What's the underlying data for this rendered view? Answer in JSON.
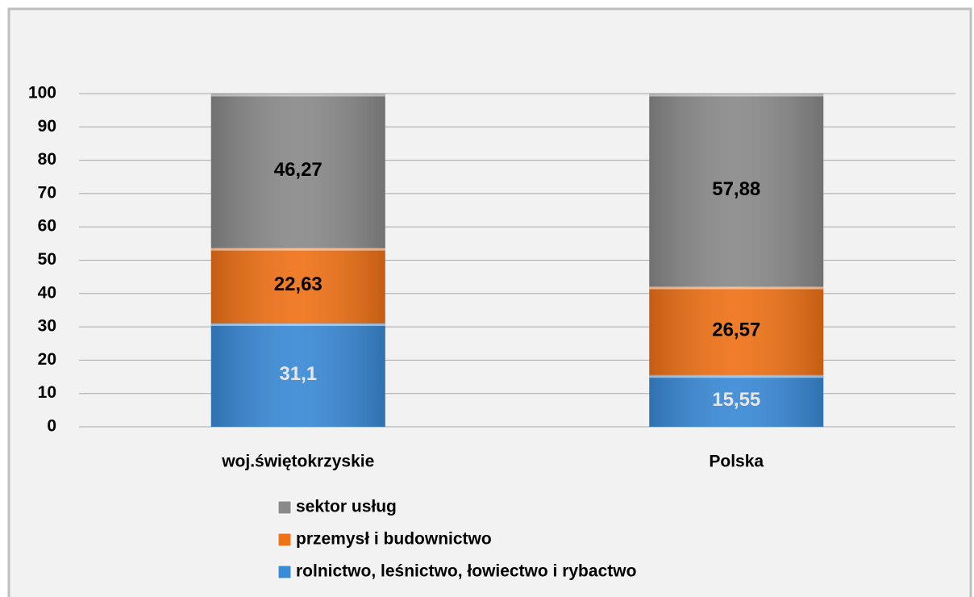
{
  "chart_data": {
    "type": "stacked_bar",
    "categories": [
      "woj.świętokrzyskie",
      "Polska"
    ],
    "series": [
      {
        "name": "rolnictwo, leśnictwo, łowiectwo i rybactwo",
        "color": "#3a8ad6",
        "label_color": "#e6e6e6",
        "values": [
          31.1,
          15.55
        ],
        "value_labels": [
          "31,1",
          "15,55"
        ]
      },
      {
        "name": "przemysł i budownictwo",
        "color": "#ef7217",
        "label_color": "#000000",
        "values": [
          22.63,
          26.57
        ],
        "value_labels": [
          "22,63",
          "26,57"
        ]
      },
      {
        "name": "sektor usług",
        "color": "#8a8a8a",
        "label_color": "#000000",
        "values": [
          46.27,
          57.88
        ],
        "value_labels": [
          "46,27",
          "57,88"
        ]
      }
    ],
    "ylim": [
      0,
      100
    ],
    "yticks": [
      0,
      10,
      20,
      30,
      40,
      50,
      60,
      70,
      80,
      90,
      100
    ],
    "grid": true,
    "legend": "bottom"
  }
}
